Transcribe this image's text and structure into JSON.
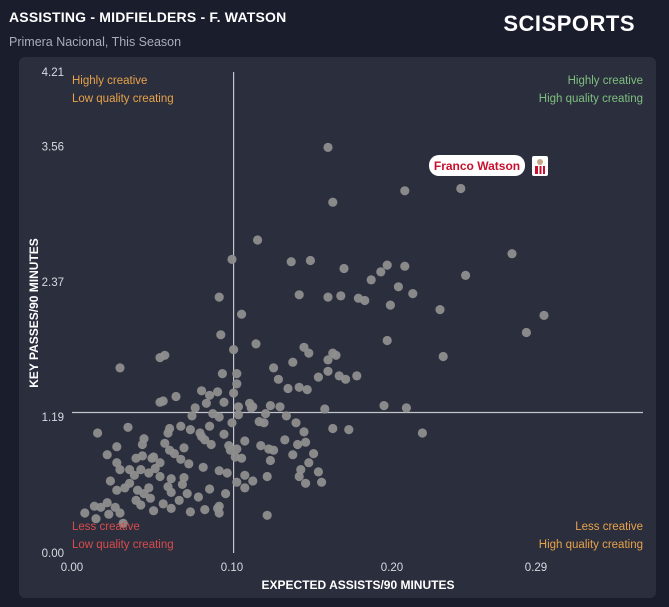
{
  "header": {
    "title": "ASSISTING - MIDFIELDERS - F. WATSON",
    "subtitle": "Primera Nacional, This Season",
    "logo_text": "SCISPORTS"
  },
  "colors": {
    "background": "#1a1e2c",
    "panel": "#2a2e3d",
    "point": "#8e8e8e",
    "axis": "#c4c6cc",
    "orange": "#e8a24a",
    "green": "#7fbf7f",
    "red": "#d94c4c",
    "highlight_text": "#c8102e"
  },
  "chart_data": {
    "type": "scatter",
    "xlabel": "EXPECTED ASSISTS/90 MINUTES",
    "ylabel": "KEY PASSES/90 MINUTES",
    "xlim": [
      0,
      0.36
    ],
    "ylim": [
      0,
      4.21
    ],
    "x_ticks": [
      {
        "value": 0.0,
        "label": "0.00"
      },
      {
        "value": 0.1,
        "label": "0.10"
      },
      {
        "value": 0.2,
        "label": "0.20"
      },
      {
        "value": 0.29,
        "label": "0.29"
      }
    ],
    "y_ticks": [
      {
        "value": 0.0,
        "label": "0.00"
      },
      {
        "value": 1.19,
        "label": "1.19"
      },
      {
        "value": 2.37,
        "label": "2.37"
      },
      {
        "value": 3.56,
        "label": "3.56"
      },
      {
        "value": 4.21,
        "label": "4.21"
      }
    ],
    "reference_lines": {
      "x": 0.101,
      "y": 1.23
    },
    "quadrant_labels": {
      "top_left": [
        "Highly creative",
        "Low quality creating"
      ],
      "top_right": [
        "Highly creative",
        "High quality creating"
      ],
      "bottom_left": [
        "Less creative",
        "Low quality creating"
      ],
      "bottom_right": [
        "Less creative",
        "High quality creating"
      ]
    },
    "highlight": {
      "name": "Franco Watson",
      "x": 0.295,
      "y": 3.37
    },
    "points": [
      [
        0.16,
        3.55
      ],
      [
        0.163,
        3.07
      ],
      [
        0.208,
        3.17
      ],
      [
        0.243,
        3.19
      ],
      [
        0.275,
        2.62
      ],
      [
        0.116,
        2.74
      ],
      [
        0.1,
        2.57
      ],
      [
        0.137,
        2.55
      ],
      [
        0.149,
        2.56
      ],
      [
        0.17,
        2.49
      ],
      [
        0.197,
        2.52
      ],
      [
        0.208,
        2.51
      ],
      [
        0.246,
        2.43
      ],
      [
        0.187,
        2.39
      ],
      [
        0.193,
        2.46
      ],
      [
        0.204,
        2.33
      ],
      [
        0.213,
        2.27
      ],
      [
        0.183,
        2.21
      ],
      [
        0.168,
        2.25
      ],
      [
        0.179,
        2.23
      ],
      [
        0.142,
        2.26
      ],
      [
        0.092,
        2.24
      ],
      [
        0.16,
        2.24
      ],
      [
        0.199,
        2.17
      ],
      [
        0.23,
        2.13
      ],
      [
        0.295,
        2.08
      ],
      [
        0.284,
        1.93
      ],
      [
        0.106,
        2.09
      ],
      [
        0.232,
        1.72
      ],
      [
        0.197,
        1.86
      ],
      [
        0.148,
        1.75
      ],
      [
        0.145,
        1.8
      ],
      [
        0.163,
        1.75
      ],
      [
        0.16,
        1.69
      ],
      [
        0.165,
        1.73
      ],
      [
        0.16,
        1.59
      ],
      [
        0.167,
        1.55
      ],
      [
        0.178,
        1.55
      ],
      [
        0.154,
        1.54
      ],
      [
        0.171,
        1.52
      ],
      [
        0.115,
        1.83
      ],
      [
        0.093,
        1.91
      ],
      [
        0.101,
        1.78
      ],
      [
        0.103,
        1.57
      ],
      [
        0.126,
        1.62
      ],
      [
        0.138,
        1.67
      ],
      [
        0.129,
        1.52
      ],
      [
        0.142,
        1.45
      ],
      [
        0.135,
        1.44
      ],
      [
        0.147,
        1.43
      ],
      [
        0.103,
        1.48
      ],
      [
        0.094,
        1.57
      ],
      [
        0.058,
        1.73
      ],
      [
        0.055,
        1.71
      ],
      [
        0.03,
        1.62
      ],
      [
        0.081,
        1.42
      ],
      [
        0.086,
        1.38
      ],
      [
        0.095,
        1.32
      ],
      [
        0.111,
        1.31
      ],
      [
        0.113,
        1.28
      ],
      [
        0.065,
        1.37
      ],
      [
        0.057,
        1.33
      ],
      [
        0.055,
        1.32
      ],
      [
        0.077,
        1.27
      ],
      [
        0.088,
        1.22
      ],
      [
        0.092,
        1.19
      ],
      [
        0.104,
        1.21
      ],
      [
        0.1,
        1.14
      ],
      [
        0.095,
        1.04
      ],
      [
        0.098,
        0.94
      ],
      [
        0.087,
        0.95
      ],
      [
        0.08,
        1.05
      ],
      [
        0.074,
        1.08
      ],
      [
        0.061,
        1.09
      ],
      [
        0.068,
        1.11
      ],
      [
        0.086,
        1.11
      ],
      [
        0.081,
        1.02
      ],
      [
        0.083,
        0.99
      ],
      [
        0.07,
        0.92
      ],
      [
        0.061,
        0.9
      ],
      [
        0.051,
        0.84
      ],
      [
        0.055,
        0.79
      ],
      [
        0.044,
        0.95
      ],
      [
        0.044,
        0.85
      ],
      [
        0.028,
        0.79
      ],
      [
        0.03,
        0.73
      ],
      [
        0.036,
        0.73
      ],
      [
        0.043,
        0.73
      ],
      [
        0.048,
        0.7
      ],
      [
        0.052,
        0.74
      ],
      [
        0.039,
        0.68
      ],
      [
        0.055,
        0.67
      ],
      [
        0.062,
        0.65
      ],
      [
        0.07,
        0.66
      ],
      [
        0.069,
        0.6
      ],
      [
        0.06,
        0.58
      ],
      [
        0.048,
        0.57
      ],
      [
        0.041,
        0.55
      ],
      [
        0.028,
        0.55
      ],
      [
        0.033,
        0.57
      ],
      [
        0.024,
        0.63
      ],
      [
        0.036,
        0.61
      ],
      [
        0.022,
        0.44
      ],
      [
        0.018,
        0.4
      ],
      [
        0.023,
        0.34
      ],
      [
        0.03,
        0.35
      ],
      [
        0.027,
        0.4
      ],
      [
        0.008,
        0.35
      ],
      [
        0.015,
        0.3
      ],
      [
        0.032,
        0.26
      ],
      [
        0.049,
        0.48
      ],
      [
        0.057,
        0.43
      ],
      [
        0.062,
        0.39
      ],
      [
        0.074,
        0.36
      ],
      [
        0.083,
        0.38
      ],
      [
        0.091,
        0.39
      ],
      [
        0.092,
        0.41
      ],
      [
        0.096,
        0.52
      ],
      [
        0.103,
        0.62
      ],
      [
        0.108,
        0.57
      ],
      [
        0.113,
        0.63
      ],
      [
        0.122,
        0.67
      ],
      [
        0.124,
        0.81
      ],
      [
        0.118,
        0.94
      ],
      [
        0.123,
        0.91
      ],
      [
        0.117,
        1.15
      ],
      [
        0.121,
        1.22
      ],
      [
        0.124,
        1.29
      ],
      [
        0.134,
        1.2
      ],
      [
        0.145,
        1.06
      ],
      [
        0.146,
        0.97
      ],
      [
        0.141,
        0.95
      ],
      [
        0.14,
        1.14
      ],
      [
        0.138,
        0.86
      ],
      [
        0.143,
        0.73
      ],
      [
        0.142,
        0.67
      ],
      [
        0.148,
        0.79
      ],
      [
        0.151,
        0.87
      ],
      [
        0.154,
        0.71
      ],
      [
        0.156,
        0.62
      ],
      [
        0.146,
        0.61
      ],
      [
        0.163,
        1.09
      ],
      [
        0.173,
        1.08
      ],
      [
        0.158,
        1.26
      ],
      [
        0.13,
        1.28
      ],
      [
        0.195,
        1.29
      ],
      [
        0.209,
        1.27
      ],
      [
        0.219,
        1.05
      ],
      [
        0.122,
        0.33
      ],
      [
        0.092,
        0.35
      ],
      [
        0.062,
        0.53
      ],
      [
        0.045,
        0.52
      ],
      [
        0.016,
        1.05
      ],
      [
        0.035,
        1.1
      ],
      [
        0.028,
        0.93
      ],
      [
        0.022,
        0.86
      ],
      [
        0.04,
        0.83
      ],
      [
        0.05,
        0.83
      ],
      [
        0.064,
        0.87
      ],
      [
        0.068,
        0.82
      ],
      [
        0.073,
        0.78
      ],
      [
        0.082,
        0.75
      ],
      [
        0.092,
        0.72
      ],
      [
        0.102,
        0.84
      ],
      [
        0.106,
        0.83
      ],
      [
        0.097,
        0.7
      ],
      [
        0.086,
        0.56
      ],
      [
        0.079,
        0.49
      ],
      [
        0.072,
        0.52
      ],
      [
        0.067,
        0.46
      ],
      [
        0.04,
        0.46
      ],
      [
        0.043,
        0.42
      ],
      [
        0.051,
        0.37
      ],
      [
        0.014,
        0.41
      ],
      [
        0.06,
        1.05
      ],
      [
        0.045,
        1.0
      ],
      [
        0.058,
        0.96
      ],
      [
        0.099,
        0.9
      ],
      [
        0.103,
        0.91
      ],
      [
        0.108,
        0.98
      ],
      [
        0.075,
        1.2
      ],
      [
        0.084,
        1.31
      ],
      [
        0.091,
        1.41
      ],
      [
        0.101,
        1.4
      ],
      [
        0.104,
        1.28
      ],
      [
        0.112,
        1.27
      ],
      [
        0.12,
        1.14
      ],
      [
        0.126,
        0.9
      ],
      [
        0.133,
        0.99
      ],
      [
        0.108,
        0.68
      ]
    ]
  }
}
